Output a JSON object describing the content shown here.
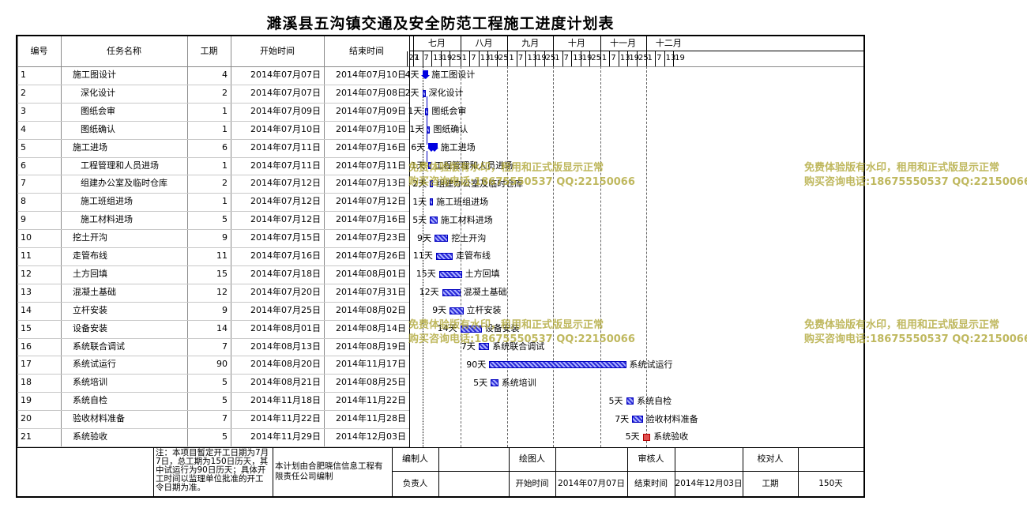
{
  "title": "濉溪县五沟镇交通及安全防范工程施工进度计划表",
  "headers": {
    "id": "编号",
    "name": "任务名称",
    "duration": "工期",
    "start": "开始时间",
    "end": "结束时间"
  },
  "months": [
    "七月",
    "八月",
    "九月",
    "十月",
    "十一月",
    "十二月"
  ],
  "days": [
    "27",
    "1",
    "7",
    "13",
    "19",
    "25",
    "1",
    "7",
    "13",
    "19",
    "25",
    "1",
    "7",
    "13",
    "19",
    "25",
    "1",
    "7",
    "13",
    "19",
    "25",
    "1",
    "7",
    "13",
    "19",
    "25",
    "1",
    "7",
    "13",
    "19"
  ],
  "tasks": [
    {
      "id": "1",
      "name": "施工图设计",
      "dur": "4",
      "start": "2014年07月07日",
      "end": "2014年07月10日",
      "indent": 0,
      "summary": true,
      "days": 4,
      "sd": 7
    },
    {
      "id": "2",
      "name": "深化设计",
      "dur": "2",
      "start": "2014年07月07日",
      "end": "2014年07月08日",
      "indent": 1,
      "days": 2,
      "sd": 7
    },
    {
      "id": "3",
      "name": "图纸会审",
      "dur": "1",
      "start": "2014年07月09日",
      "end": "2014年07月09日",
      "indent": 1,
      "days": 1,
      "sd": 9
    },
    {
      "id": "4",
      "name": "图纸确认",
      "dur": "1",
      "start": "2014年07月10日",
      "end": "2014年07月10日",
      "indent": 1,
      "days": 1,
      "sd": 10
    },
    {
      "id": "5",
      "name": "施工进场",
      "dur": "6",
      "start": "2014年07月11日",
      "end": "2014年07月16日",
      "indent": 0,
      "summary": true,
      "days": 6,
      "sd": 11
    },
    {
      "id": "6",
      "name": "工程管理和人员进场",
      "dur": "1",
      "start": "2014年07月11日",
      "end": "2014年07月11日",
      "indent": 1,
      "days": 1,
      "sd": 11
    },
    {
      "id": "7",
      "name": "组建办公室及临时仓库",
      "dur": "2",
      "start": "2014年07月12日",
      "end": "2014年07月13日",
      "indent": 1,
      "days": 2,
      "sd": 12
    },
    {
      "id": "8",
      "name": "施工班组进场",
      "dur": "1",
      "start": "2014年07月12日",
      "end": "2014年07月12日",
      "indent": 1,
      "days": 1,
      "sd": 12
    },
    {
      "id": "9",
      "name": "施工材料进场",
      "dur": "5",
      "start": "2014年07月12日",
      "end": "2014年07月16日",
      "indent": 1,
      "days": 5,
      "sd": 12
    },
    {
      "id": "10",
      "name": "挖土开沟",
      "dur": "9",
      "start": "2014年07月15日",
      "end": "2014年07月23日",
      "indent": 0,
      "days": 9,
      "sd": 15
    },
    {
      "id": "11",
      "name": "走管布线",
      "dur": "11",
      "start": "2014年07月16日",
      "end": "2014年07月26日",
      "indent": 0,
      "days": 11,
      "sd": 16
    },
    {
      "id": "12",
      "name": "土方回填",
      "dur": "15",
      "start": "2014年07月18日",
      "end": "2014年08月01日",
      "indent": 0,
      "days": 15,
      "sd": 18
    },
    {
      "id": "13",
      "name": "混凝土基础",
      "dur": "12",
      "start": "2014年07月20日",
      "end": "2014年07月31日",
      "indent": 0,
      "days": 12,
      "sd": 20
    },
    {
      "id": "14",
      "name": "立杆安装",
      "dur": "9",
      "start": "2014年07月25日",
      "end": "2014年08月02日",
      "indent": 0,
      "days": 9,
      "sd": 25
    },
    {
      "id": "15",
      "name": "设备安装",
      "dur": "14",
      "start": "2014年08月01日",
      "end": "2014年08月14日",
      "indent": 0,
      "days": 14,
      "sd": 32
    },
    {
      "id": "16",
      "name": "系统联合调试",
      "dur": "7",
      "start": "2014年08月13日",
      "end": "2014年08月19日",
      "indent": 0,
      "days": 7,
      "sd": 44
    },
    {
      "id": "17",
      "name": "系统试运行",
      "dur": "90",
      "start": "2014年08月20日",
      "end": "2014年11月17日",
      "indent": 0,
      "days": 90,
      "sd": 51
    },
    {
      "id": "18",
      "name": "系统培训",
      "dur": "5",
      "start": "2014年08月21日",
      "end": "2014年08月25日",
      "indent": 0,
      "days": 5,
      "sd": 52
    },
    {
      "id": "19",
      "name": "系统自检",
      "dur": "5",
      "start": "2014年11月18日",
      "end": "2014年11月22日",
      "indent": 0,
      "days": 5,
      "sd": 141
    },
    {
      "id": "20",
      "name": "验收材料准备",
      "dur": "7",
      "start": "2014年11月22日",
      "end": "2014年11月28日",
      "indent": 0,
      "days": 7,
      "sd": 145
    },
    {
      "id": "21",
      "name": "系统验收",
      "dur": "5",
      "start": "2014年11月29日",
      "end": "2014年12月03日",
      "indent": 0,
      "days": 5,
      "sd": 152,
      "red": true
    }
  ],
  "dur_suffix": "天",
  "footer": {
    "note": "注：本项目暂定开工日期为7月7日，总工期为150日历天，其中试运行为90日历天；具体开工时间以监理单位批准的开工令日期为准。",
    "company": "本计划由合肥晓信信息工程有限责任公司编制",
    "compiler": "编制人",
    "drawer": "绘图人",
    "reviewer": "审核人",
    "checker": "校对人",
    "leader": "负责人",
    "start_label": "开始时间",
    "start_val": "2014年07月07日",
    "end_label": "结束时间",
    "end_val": "2014年12月03日",
    "dur_label": "工期",
    "dur_val": "150天"
  },
  "watermark": {
    "line1": "免费体验版有水印，租用和正式版显示正常",
    "line2": "购买咨询电话:18675550537 QQ:22150066"
  },
  "colors": {
    "bar": "#2a2ad8",
    "summary": "#0000e0",
    "accept": "#e05050"
  }
}
